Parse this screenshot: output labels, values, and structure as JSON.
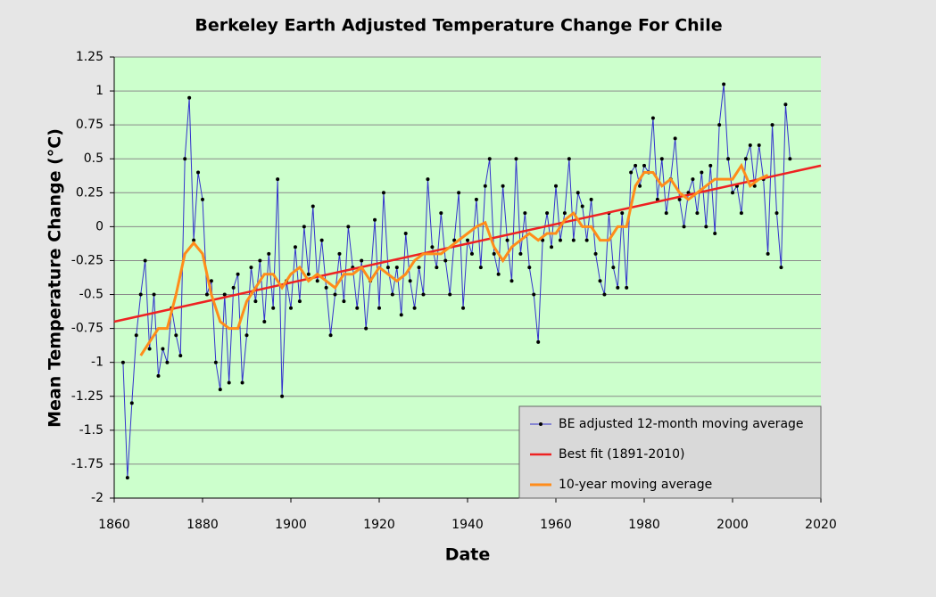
{
  "chart_data": {
    "type": "line",
    "title": "Berkeley Earth Adjusted Temperature Change For Chile",
    "x_label": "Date",
    "y_label": "Mean  Temperature  Change  (°C)",
    "xlim": [
      1860,
      2020
    ],
    "xticks": [
      1860,
      1880,
      1900,
      1920,
      1940,
      1960,
      1980,
      2000,
      2020
    ],
    "ylim": [
      -2,
      1.25
    ],
    "yticks": [
      1.25,
      1,
      0.75,
      0.5,
      0.25,
      0,
      -0.25,
      -0.5,
      -0.75,
      -1,
      -1.25,
      -1.5,
      -1.75,
      -2
    ],
    "grid": true,
    "legend": "lower right",
    "series": [
      {
        "name": "BE adjusted 12-month moving average",
        "color": "#3333cc",
        "markers": true,
        "x": [
          1862,
          1863,
          1864,
          1865,
          1866,
          1867,
          1868,
          1869,
          1870,
          1871,
          1872,
          1873,
          1874,
          1875,
          1876,
          1877,
          1878,
          1879,
          1880,
          1881,
          1882,
          1883,
          1884,
          1885,
          1886,
          1887,
          1888,
          1889,
          1890,
          1891,
          1892,
          1893,
          1894,
          1895,
          1896,
          1897,
          1898,
          1899,
          1900,
          1901,
          1902,
          1903,
          1904,
          1905,
          1906,
          1907,
          1908,
          1909,
          1910,
          1911,
          1912,
          1913,
          1914,
          1915,
          1916,
          1917,
          1918,
          1919,
          1920,
          1921,
          1922,
          1923,
          1924,
          1925,
          1926,
          1927,
          1928,
          1929,
          1930,
          1931,
          1932,
          1933,
          1934,
          1935,
          1936,
          1937,
          1938,
          1939,
          1940,
          1941,
          1942,
          1943,
          1944,
          1945,
          1946,
          1947,
          1948,
          1949,
          1950,
          1951,
          1952,
          1953,
          1954,
          1955,
          1956,
          1957,
          1958,
          1959,
          1960,
          1961,
          1962,
          1963,
          1964,
          1965,
          1966,
          1967,
          1968,
          1969,
          1970,
          1971,
          1972,
          1973,
          1974,
          1975,
          1976,
          1977,
          1978,
          1979,
          1980,
          1981,
          1982,
          1983,
          1984,
          1985,
          1986,
          1987,
          1988,
          1989,
          1990,
          1991,
          1992,
          1993,
          1994,
          1995,
          1996,
          1997,
          1998,
          1999,
          2000,
          2001,
          2002,
          2003,
          2004,
          2005,
          2006,
          2007,
          2008,
          2009,
          2010,
          2011,
          2012,
          2013
        ],
        "values": [
          -1.0,
          -1.85,
          -1.3,
          -0.8,
          -0.5,
          -0.25,
          -0.9,
          -0.5,
          -1.1,
          -0.9,
          -1.0,
          -0.6,
          -0.8,
          -0.95,
          0.5,
          0.95,
          -0.1,
          0.4,
          0.2,
          -0.5,
          -0.4,
          -1.0,
          -1.2,
          -0.5,
          -1.15,
          -0.45,
          -0.35,
          -1.15,
          -0.8,
          -0.3,
          -0.55,
          -0.25,
          -0.7,
          -0.2,
          -0.6,
          0.35,
          -1.25,
          -0.4,
          -0.6,
          -0.15,
          -0.55,
          0.0,
          -0.35,
          0.15,
          -0.4,
          -0.1,
          -0.45,
          -0.8,
          -0.5,
          -0.2,
          -0.55,
          0.0,
          -0.3,
          -0.6,
          -0.25,
          -0.75,
          -0.4,
          0.05,
          -0.6,
          0.25,
          -0.3,
          -0.5,
          -0.3,
          -0.65,
          -0.05,
          -0.4,
          -0.6,
          -0.3,
          -0.5,
          0.35,
          -0.15,
          -0.3,
          0.1,
          -0.25,
          -0.5,
          -0.1,
          0.25,
          -0.6,
          -0.1,
          -0.2,
          0.2,
          -0.3,
          0.3,
          0.5,
          -0.2,
          -0.35,
          0.3,
          -0.1,
          -0.4,
          0.5,
          -0.2,
          0.1,
          -0.3,
          -0.5,
          -0.85,
          -0.1,
          0.1,
          -0.15,
          0.3,
          -0.1,
          0.1,
          0.5,
          -0.1,
          0.25,
          0.15,
          -0.1,
          0.2,
          -0.2,
          -0.4,
          -0.5,
          0.1,
          -0.3,
          -0.45,
          0.1,
          -0.45,
          0.4,
          0.45,
          0.3,
          0.45,
          0.4,
          0.8,
          0.2,
          0.5,
          0.1,
          0.35,
          0.65,
          0.2,
          0.0,
          0.25,
          0.35,
          0.1,
          0.4,
          0.0,
          0.45,
          -0.05,
          0.75,
          1.05,
          0.5,
          0.25,
          0.3,
          0.1,
          0.5,
          0.6,
          0.3,
          0.6,
          0.35,
          -0.2,
          0.75,
          0.1,
          -0.3,
          0.9,
          0.5
        ]
      },
      {
        "name": "Best fit (1891-2010)",
        "color": "#ee2222",
        "x": [
          1860,
          2020
        ],
        "values": [
          -0.7,
          0.45
        ]
      },
      {
        "name": "10-year moving average",
        "color": "#ff8c1a",
        "x": [
          1866,
          1868,
          1870,
          1872,
          1874,
          1876,
          1878,
          1880,
          1882,
          1884,
          1886,
          1888,
          1890,
          1892,
          1894,
          1896,
          1898,
          1900,
          1902,
          1904,
          1906,
          1908,
          1910,
          1912,
          1914,
          1916,
          1918,
          1920,
          1922,
          1924,
          1926,
          1928,
          1930,
          1932,
          1934,
          1936,
          1938,
          1940,
          1942,
          1944,
          1946,
          1948,
          1950,
          1952,
          1954,
          1956,
          1958,
          1960,
          1962,
          1964,
          1966,
          1968,
          1970,
          1972,
          1974,
          1976,
          1978,
          1980,
          1982,
          1984,
          1986,
          1988,
          1990,
          1992,
          1994,
          1996,
          1998,
          2000,
          2002,
          2004,
          2006,
          2008
        ],
        "values": [
          -0.95,
          -0.85,
          -0.75,
          -0.75,
          -0.5,
          -0.2,
          -0.12,
          -0.2,
          -0.5,
          -0.7,
          -0.75,
          -0.75,
          -0.55,
          -0.45,
          -0.35,
          -0.35,
          -0.45,
          -0.35,
          -0.3,
          -0.4,
          -0.35,
          -0.4,
          -0.45,
          -0.35,
          -0.35,
          -0.3,
          -0.4,
          -0.3,
          -0.35,
          -0.4,
          -0.35,
          -0.25,
          -0.2,
          -0.2,
          -0.2,
          -0.15,
          -0.1,
          -0.05,
          0.0,
          0.03,
          -0.15,
          -0.25,
          -0.15,
          -0.1,
          -0.05,
          -0.1,
          -0.05,
          -0.05,
          0.05,
          0.1,
          0.0,
          0.0,
          -0.1,
          -0.1,
          0.0,
          0.0,
          0.3,
          0.4,
          0.4,
          0.3,
          0.35,
          0.25,
          0.2,
          0.25,
          0.3,
          0.35,
          0.35,
          0.35,
          0.45,
          0.3,
          0.35,
          0.38
        ]
      }
    ]
  }
}
